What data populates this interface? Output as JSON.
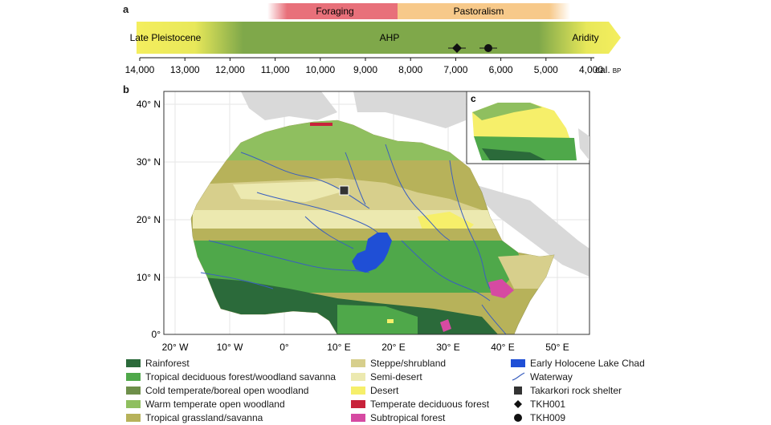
{
  "panels": {
    "a": "a",
    "b": "b",
    "c": "c"
  },
  "timeline": {
    "phases_top": [
      {
        "label": "Foraging",
        "color": "#e8707a"
      },
      {
        "label": "Pastoralism",
        "color": "#f7c98a"
      }
    ],
    "arrow_labels": {
      "left": "Late Pleistocene",
      "middle": "AHP",
      "right": "Aridity"
    },
    "ticks": [
      "14,000",
      "13,000",
      "12,000",
      "11,000",
      "10,000",
      "9,000",
      "8,000",
      "7,000",
      "6,000",
      "5,000",
      "4,000"
    ],
    "axis_unit": "cal.",
    "axis_unit_sub": "BP",
    "colors": {
      "yellow": "#f4ee5e",
      "green": "#7fa84a"
    }
  },
  "map": {
    "lat_labels": [
      "40° N",
      "30° N",
      "20° N",
      "10° N",
      "0°"
    ],
    "lon_labels": [
      "20° W",
      "10° W",
      "0°",
      "10° E",
      "20° E",
      "30° E",
      "40° E",
      "50° E"
    ],
    "colors": {
      "rainforest": "#2b6a3a",
      "tropical_deciduous": "#4fa84a",
      "cold_temperate": "#6e8f4a",
      "warm_temperate": "#8fbf5f",
      "tropical_grassland": "#b7b25a",
      "steppe": "#d7cf8c",
      "semi_desert": "#ece9b0",
      "desert": "#f6ef6a",
      "temperate_deciduous": "#c8223a",
      "subtropical": "#d64aa2",
      "lake": "#1f4fd6",
      "waterway": "#3a5fbf",
      "land_outside": "#d9d9d9"
    }
  },
  "legend": {
    "col1": [
      "Rainforest",
      "Tropical deciduous forest/woodland savanna",
      "Cold temperate/boreal open woodland",
      "Warm temperate open woodland",
      "Tropical grassland/savanna"
    ],
    "col2": [
      "Steppe/shrubland",
      "Semi-desert",
      "Desert",
      "Temperate deciduous forest",
      "Subtropical forest"
    ],
    "col3": [
      "Early Holocene Lake Chad",
      "Waterway",
      "Takarkori rock shelter",
      "TKH001",
      "TKH009"
    ]
  }
}
